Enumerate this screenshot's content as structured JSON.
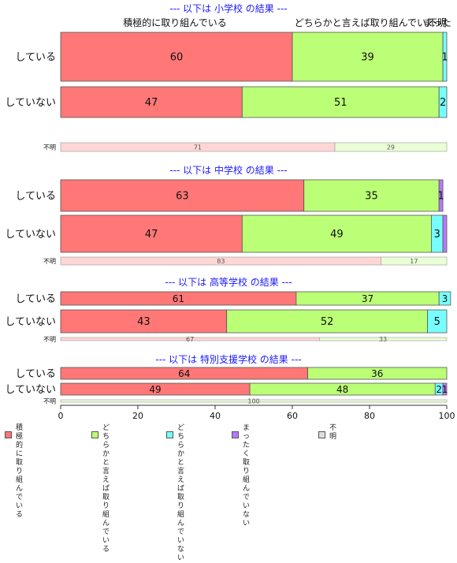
{
  "chart_data": {
    "type": "bar",
    "orientation": "horizontal",
    "stacked": true,
    "xlim": [
      0,
      100
    ],
    "xticks": [
      0,
      20,
      40,
      60,
      80,
      100
    ],
    "colors": [
      "#ff7777",
      "#bbff77",
      "#77ffff",
      "#bb77ff",
      "#dddddd"
    ],
    "top_labels": [
      "積極的に取り組んでいる",
      "どちらかと言えば取り組んでい...",
      "まった",
      "不明"
    ],
    "legend": [
      "積極的に\n取り組んでいる",
      "どちらかと言えば\n取り組んでいる",
      "どちらかと言えば\n取り組んでいない",
      "まったく\n取り組んでいない",
      "不明"
    ],
    "panels": [
      {
        "title": "--- 以下は 小学校 の結果 ---",
        "rows": [
          {
            "label": "している",
            "values": [
              60,
              39,
              1,
              0,
              0
            ],
            "shown": [
              "60",
              "39",
              "1",
              "",
              ""
            ]
          },
          {
            "label": "していない",
            "values": [
              47,
              51,
              2,
              0,
              0
            ],
            "shown": [
              "47",
              "51",
              "2",
              "",
              ""
            ]
          },
          {
            "label": "不明",
            "values": [
              71,
              29,
              0,
              0,
              0
            ],
            "shown": [
              "71",
              "29",
              "",
              "",
              ""
            ],
            "minor": true
          }
        ]
      },
      {
        "title": "--- 以下は 中学校 の結果 ---",
        "rows": [
          {
            "label": "している",
            "values": [
              63,
              35,
              0,
              1,
              0
            ],
            "shown": [
              "63",
              "35",
              "",
              "1",
              ""
            ]
          },
          {
            "label": "していない",
            "values": [
              47,
              49,
              3,
              1,
              0
            ],
            "shown": [
              "47",
              "49",
              "3",
              "",
              ""
            ]
          },
          {
            "label": "不明",
            "values": [
              83,
              17,
              0,
              0,
              0
            ],
            "shown": [
              "83",
              "17",
              "",
              "",
              ""
            ],
            "minor": true
          }
        ]
      },
      {
        "title": "--- 以下は 高等学校 の結果 ---",
        "rows": [
          {
            "label": "している",
            "values": [
              61,
              37,
              3,
              0,
              0
            ],
            "shown": [
              "61",
              "37",
              "3",
              "",
              ""
            ]
          },
          {
            "label": "していない",
            "values": [
              43,
              52,
              5,
              0,
              0
            ],
            "shown": [
              "43",
              "52",
              "5",
              "",
              ""
            ]
          },
          {
            "label": "不明",
            "values": [
              67,
              33,
              0,
              0,
              0
            ],
            "shown": [
              "67",
              "33",
              "",
              "",
              ""
            ],
            "minor": true
          }
        ]
      },
      {
        "title": "--- 以下は 特別支援学校 の結果 ---",
        "rows": [
          {
            "label": "している",
            "values": [
              64,
              36,
              0,
              0,
              0
            ],
            "shown": [
              "64",
              "36",
              "",
              "",
              ""
            ]
          },
          {
            "label": "していない",
            "values": [
              49,
              48,
              2,
              1,
              0
            ],
            "shown": [
              "49",
              "48",
              "2",
              "1",
              ""
            ]
          },
          {
            "label": "不明",
            "values": [
              0,
              100,
              0,
              0,
              0
            ],
            "shown": [
              "",
              "100",
              "",
              "",
              ""
            ],
            "minor": true
          }
        ]
      }
    ]
  }
}
